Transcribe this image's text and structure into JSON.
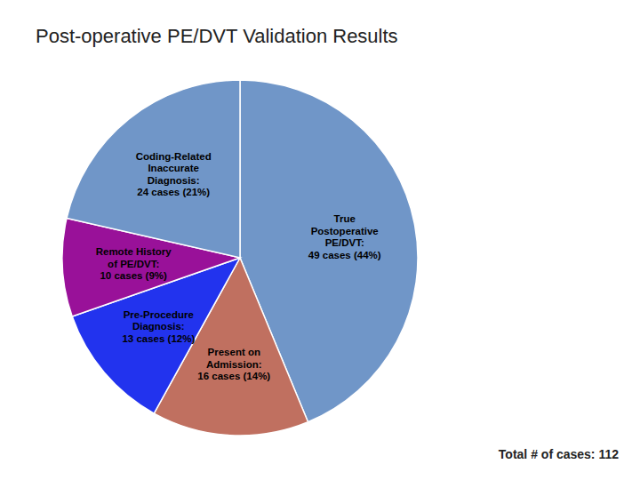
{
  "chart_data": {
    "type": "pie",
    "title": "Post-operative PE/DVT Validation Results",
    "annotations": [
      "Total # of cases: 112"
    ],
    "categories": [
      "True\nPostoperative\nPE/DVT:",
      "Present on\nAdmission:",
      "Pre-Procedure\nDiagnosis:",
      "Remote History\nof PE/DVT:",
      "Coding-Related\nInaccurate\nDiagnosis:"
    ],
    "values": [
      49,
      16,
      13,
      10,
      24
    ],
    "value_labels": [
      "49 cases (44%)",
      "16 cases (14%)",
      "13 cases (12%)",
      "10 cases (9%)",
      "24 cases (21%)"
    ],
    "colors": [
      "#7096C8",
      "#C07060",
      "#2233EE",
      "#991199",
      "#7096C8"
    ],
    "data_labels": true
  }
}
